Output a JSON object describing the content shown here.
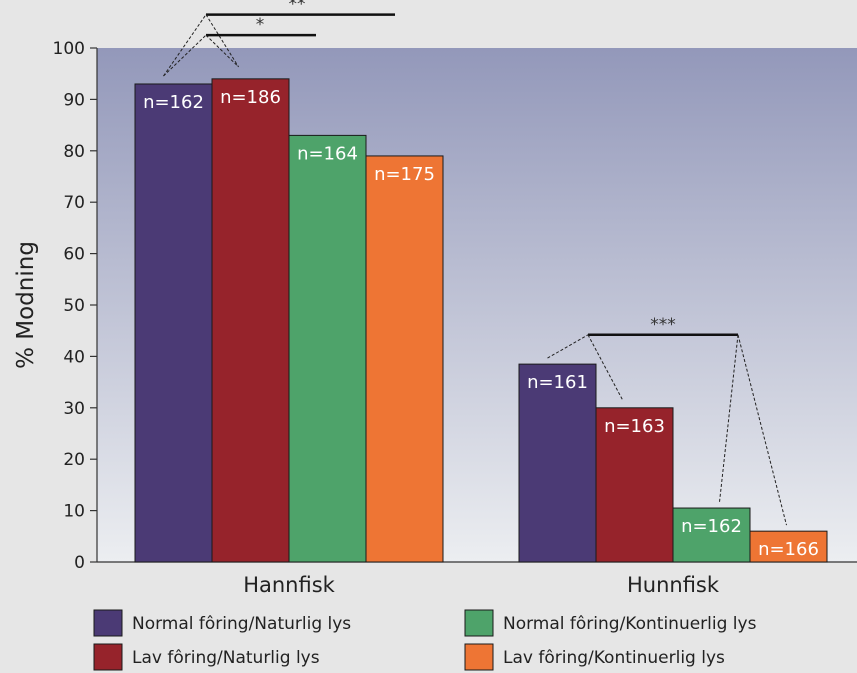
{
  "chart_data": {
    "type": "bar",
    "ylabel": "% Modning",
    "ylim": [
      0,
      100
    ],
    "yticks": [
      0,
      10,
      20,
      30,
      40,
      50,
      60,
      70,
      80,
      90,
      100
    ],
    "categories": [
      "Hannfisk",
      "Hunnfisk"
    ],
    "series": [
      {
        "name": "Normal fôring/Naturlig lys",
        "color": "#4b3a75",
        "values": [
          93,
          38.5
        ],
        "labels": [
          "n=162",
          "n=161"
        ]
      },
      {
        "name": "Lav fôring/Naturlig lys",
        "color": "#96232b",
        "values": [
          94,
          30
        ],
        "labels": [
          "n=186",
          "n=163"
        ]
      },
      {
        "name": "Normal fôring/Kontinuerlig lys",
        "color": "#4ea36a",
        "values": [
          83,
          10.5
        ],
        "labels": [
          "n=164",
          "n=162"
        ]
      },
      {
        "name": "Lav fôring/Kontinuerlig lys",
        "color": "#ee7534",
        "values": [
          79,
          6
        ],
        "labels": [
          "n=175",
          "n=166"
        ]
      }
    ],
    "significance": [
      {
        "category": 0,
        "series": [
          0,
          1
        ],
        "label": "*"
      },
      {
        "category": 0,
        "series": [
          0,
          1
        ],
        "label": "**"
      },
      {
        "category": 1,
        "series": [
          0,
          1,
          2,
          3
        ],
        "label": "***"
      }
    ],
    "legend_position": "bottom"
  }
}
